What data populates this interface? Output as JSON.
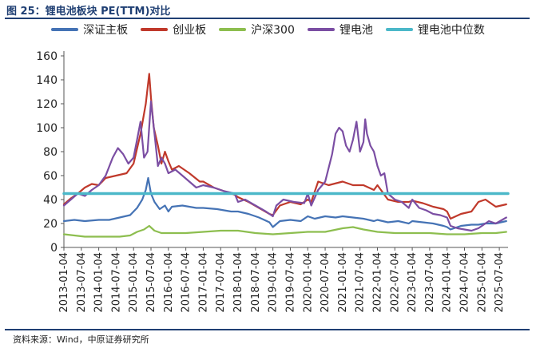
{
  "figure_title": "图 25：锂电池板块 PE(TTM)对比",
  "source": "资料来源：Wind，中原证券研究所",
  "chart_data": {
    "type": "line",
    "title": "",
    "xlabel": "",
    "ylabel": "",
    "ylim": [
      0,
      160
    ],
    "yticks": [
      0,
      20,
      40,
      60,
      80,
      100,
      120,
      140,
      160
    ],
    "xticks": [
      "2013-01-04",
      "2013-07-04",
      "2014-01-04",
      "2014-07-04",
      "2015-01-04",
      "2015-07-04",
      "2016-01-04",
      "2016-07-04",
      "2017-01-04",
      "2017-07-04",
      "2018-01-04",
      "2018-07-04",
      "2019-01-04",
      "2019-07-04",
      "2020-01-04",
      "2020-07-04",
      "2021-01-04",
      "2021-07-04",
      "2022-01-04",
      "2022-07-04",
      "2023-01-04",
      "2023-07-04",
      "2024-01-04",
      "2024-07-04",
      "2025-01-04",
      "2025-07-04"
    ],
    "xlim": [
      2013.0,
      2025.75
    ],
    "grid": false,
    "legend_position": "top",
    "series": [
      {
        "name": "深证主板",
        "color": "#4573b5",
        "x": [
          2013.0,
          2013.3,
          2013.6,
          2014.0,
          2014.3,
          2014.6,
          2014.9,
          2015.1,
          2015.25,
          2015.35,
          2015.42,
          2015.5,
          2015.6,
          2015.75,
          2015.9,
          2016.0,
          2016.1,
          2016.4,
          2016.8,
          2017.0,
          2017.4,
          2017.8,
          2018.0,
          2018.3,
          2018.6,
          2018.9,
          2019.0,
          2019.2,
          2019.5,
          2019.8,
          2020.0,
          2020.2,
          2020.5,
          2020.8,
          2021.0,
          2021.3,
          2021.6,
          2021.9,
          2022.0,
          2022.3,
          2022.6,
          2022.9,
          2023.0,
          2023.3,
          2023.6,
          2023.9,
          2024.0,
          2024.1,
          2024.4,
          2024.7,
          2024.9,
          2025.1,
          2025.4,
          2025.7
        ],
        "values": [
          22,
          23,
          22,
          23,
          23,
          25,
          27,
          33,
          40,
          48,
          58,
          45,
          38,
          32,
          35,
          30,
          34,
          35,
          33,
          33,
          32,
          30,
          30,
          28,
          25,
          21,
          17,
          22,
          23,
          22,
          26,
          24,
          26,
          25,
          26,
          25,
          24,
          22,
          23,
          21,
          22,
          20,
          22,
          21,
          20,
          18,
          17,
          15,
          18,
          19,
          19,
          20,
          20,
          22
        ]
      },
      {
        "name": "创业板",
        "color": "#c0392b",
        "x": [
          2013.0,
          2013.2,
          2013.4,
          2013.6,
          2013.8,
          2014.0,
          2014.2,
          2014.5,
          2014.8,
          2015.0,
          2015.2,
          2015.35,
          2015.45,
          2015.5,
          2015.58,
          2015.7,
          2015.8,
          2015.9,
          2016.0,
          2016.1,
          2016.3,
          2016.6,
          2016.9,
          2017.0,
          2017.3,
          2017.6,
          2017.9,
          2018.0,
          2018.3,
          2018.6,
          2018.9,
          2019.0,
          2019.2,
          2019.5,
          2019.8,
          2020.0,
          2020.1,
          2020.3,
          2020.6,
          2021.0,
          2021.3,
          2021.6,
          2021.9,
          2022.0,
          2022.3,
          2022.6,
          2022.9,
          2023.0,
          2023.3,
          2023.6,
          2023.9,
          2024.0,
          2024.1,
          2024.4,
          2024.7,
          2024.9,
          2025.1,
          2025.4,
          2025.7
        ],
        "values": [
          36,
          41,
          45,
          50,
          53,
          52,
          58,
          60,
          62,
          70,
          95,
          120,
          145,
          125,
          100,
          85,
          70,
          80,
          72,
          65,
          68,
          62,
          55,
          55,
          50,
          47,
          44,
          42,
          38,
          33,
          28,
          27,
          35,
          38,
          36,
          40,
          38,
          55,
          52,
          55,
          52,
          52,
          48,
          52,
          40,
          38,
          38,
          39,
          37,
          34,
          32,
          30,
          24,
          28,
          30,
          38,
          40,
          34,
          36
        ]
      },
      {
        "name": "沪深300",
        "color": "#8dbe4f",
        "x": [
          2013.0,
          2013.3,
          2013.6,
          2014.0,
          2014.3,
          2014.6,
          2014.9,
          2015.1,
          2015.3,
          2015.45,
          2015.6,
          2015.8,
          2016.0,
          2016.5,
          2017.0,
          2017.5,
          2018.0,
          2018.5,
          2019.0,
          2019.5,
          2020.0,
          2020.5,
          2021.0,
          2021.3,
          2021.6,
          2022.0,
          2022.5,
          2023.0,
          2023.5,
          2024.0,
          2024.5,
          2025.0,
          2025.4,
          2025.7
        ],
        "values": [
          11,
          10,
          9,
          9,
          9,
          9,
          10,
          13,
          15,
          18,
          14,
          12,
          12,
          12,
          13,
          14,
          14,
          12,
          11,
          12,
          13,
          13,
          16,
          17,
          15,
          13,
          12,
          12,
          12,
          11,
          11,
          12,
          12,
          13
        ]
      },
      {
        "name": "锂电池",
        "color": "#7b4ea3",
        "x": [
          2013.0,
          2013.2,
          2013.4,
          2013.6,
          2013.8,
          2014.0,
          2014.2,
          2014.4,
          2014.55,
          2014.7,
          2014.85,
          2015.0,
          2015.1,
          2015.2,
          2015.3,
          2015.4,
          2015.5,
          2015.6,
          2015.7,
          2015.8,
          2015.9,
          2016.0,
          2016.2,
          2016.4,
          2016.6,
          2016.8,
          2017.0,
          2017.3,
          2017.6,
          2017.9,
          2018.0,
          2018.2,
          2018.5,
          2018.8,
          2019.0,
          2019.1,
          2019.3,
          2019.6,
          2019.9,
          2020.0,
          2020.1,
          2020.3,
          2020.5,
          2020.7,
          2020.8,
          2020.9,
          2021.0,
          2021.1,
          2021.2,
          2021.3,
          2021.4,
          2021.5,
          2021.6,
          2021.65,
          2021.7,
          2021.8,
          2021.9,
          2022.0,
          2022.1,
          2022.2,
          2022.3,
          2022.5,
          2022.7,
          2022.9,
          2023.0,
          2023.2,
          2023.4,
          2023.6,
          2023.8,
          2024.0,
          2024.1,
          2024.3,
          2024.5,
          2024.7,
          2024.9,
          2025.0,
          2025.2,
          2025.4,
          2025.7
        ],
        "values": [
          35,
          40,
          45,
          43,
          48,
          52,
          60,
          75,
          83,
          78,
          70,
          75,
          90,
          105,
          75,
          80,
          122,
          95,
          68,
          75,
          70,
          62,
          65,
          60,
          55,
          50,
          52,
          50,
          47,
          45,
          38,
          40,
          35,
          30,
          26,
          35,
          40,
          38,
          37,
          45,
          35,
          48,
          55,
          78,
          95,
          100,
          97,
          85,
          80,
          90,
          105,
          80,
          88,
          107,
          95,
          85,
          80,
          68,
          60,
          62,
          45,
          40,
          38,
          33,
          40,
          33,
          31,
          28,
          27,
          25,
          18,
          16,
          15,
          14,
          16,
          18,
          22,
          20,
          25
        ]
      },
      {
        "name": "锂电池中位数",
        "color": "#4bb8c9",
        "x": [
          2013.0,
          2025.75
        ],
        "values": [
          45,
          45
        ]
      }
    ]
  }
}
